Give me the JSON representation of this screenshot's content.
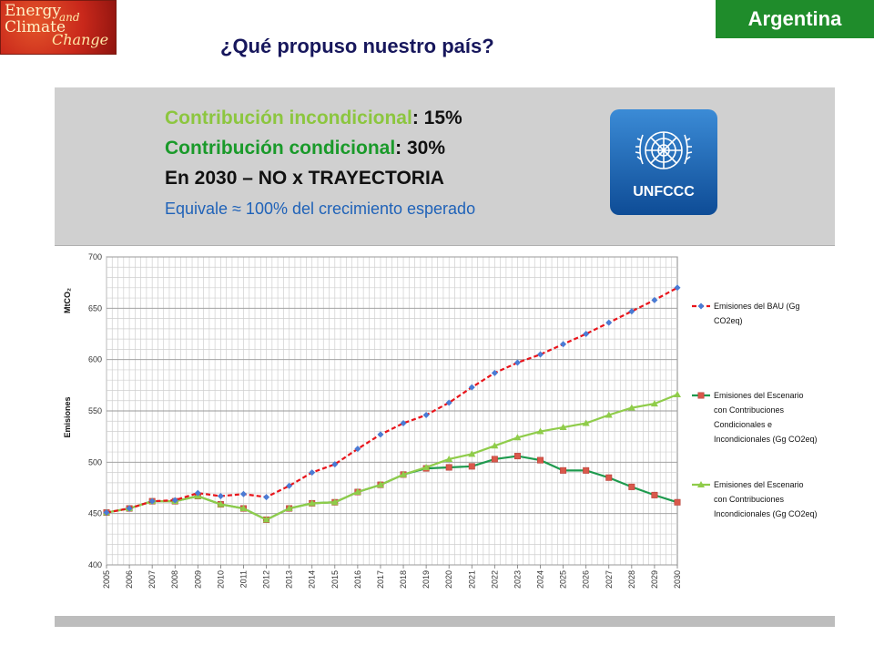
{
  "header": {
    "logo": {
      "line1": "Energy",
      "line2": "and",
      "line3": "Climate",
      "line4": "Change"
    },
    "country": "Argentina",
    "title": "¿Qué propuso nuestro país?"
  },
  "panel": {
    "line1_label": "Contribución incondicional",
    "line1_value": ": 15%",
    "line2_label": "Contribución condicional",
    "line2_value": ": 30%",
    "line3": "En 2030 – NO x TRAYECTORIA",
    "line4": "Equivale ≈ 100% del crecimiento esperado",
    "badge_text": "UNFCCC"
  },
  "colors": {
    "bau": "#e8141b",
    "bau_marker": "#4a7bd4",
    "conditional": "#1e9a4e",
    "conditional_marker": "#d9584b",
    "unconditional": "#8fcc4a",
    "unconditional_marker": "#8fcc4a"
  },
  "chart_data": {
    "type": "line",
    "ylabel": "MtCO₂",
    "ylabel_secondary": "Emisiones",
    "ylim": [
      400,
      700
    ],
    "yticks": [
      400,
      450,
      500,
      550,
      600,
      650,
      700
    ],
    "grid": true,
    "legend_position": "right",
    "x": [
      2005,
      2006,
      2007,
      2008,
      2009,
      2010,
      2011,
      2012,
      2013,
      2014,
      2015,
      2016,
      2017,
      2018,
      2019,
      2020,
      2021,
      2022,
      2023,
      2024,
      2025,
      2026,
      2027,
      2028,
      2029,
      2030
    ],
    "series": [
      {
        "name_lines": [
          "Emisiones del BAU (Gg",
          "CO2eq)"
        ],
        "style": "dashed",
        "marker": "diamond",
        "values": [
          451,
          455,
          462,
          463,
          470,
          467,
          469,
          466,
          477,
          490,
          498,
          513,
          527,
          538,
          546,
          558,
          573,
          587,
          597,
          605,
          615,
          625,
          636,
          647,
          658,
          670
        ]
      },
      {
        "name_lines": [
          "Emisiones del Escenario",
          "con Contribuciones",
          "Condicionales e",
          "Incondicionales (Gg CO2eq)"
        ],
        "style": "solid",
        "marker": "square",
        "values": [
          451,
          455,
          462,
          462,
          467,
          459,
          455,
          444,
          455,
          460,
          461,
          471,
          478,
          488,
          494,
          495,
          496,
          503,
          506,
          502,
          492,
          492,
          485,
          476,
          468,
          461
        ]
      },
      {
        "name_lines": [
          "Emisiones del Escenario",
          "con Contribuciones",
          "Incondicionales (Gg CO2eq)"
        ],
        "style": "solid",
        "marker": "triangle",
        "values": [
          451,
          455,
          462,
          462,
          467,
          459,
          455,
          444,
          455,
          460,
          461,
          471,
          478,
          488,
          495,
          503,
          508,
          516,
          524,
          530,
          534,
          538,
          546,
          553,
          557,
          566
        ]
      }
    ]
  }
}
